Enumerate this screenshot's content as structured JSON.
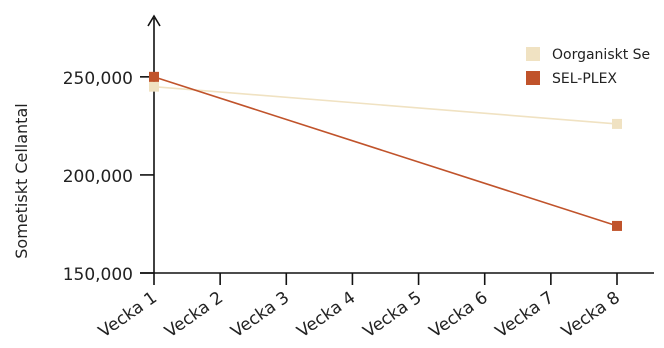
{
  "chart_data": {
    "type": "line",
    "title": "",
    "xlabel": "",
    "ylabel": "Sometiskt Cellantal",
    "categories": [
      "Vecka 1",
      "Vecka 2",
      "Vecka 3",
      "Vecka 4",
      "Vecka 5",
      "Vecka 6",
      "Vecka 7",
      "Vecka 8"
    ],
    "ylim": [
      150000,
      280000
    ],
    "yticks": [
      "150,000",
      "200,000",
      "250,000"
    ],
    "ytick_values": [
      150000,
      200000,
      250000
    ],
    "grid": false,
    "legend_position": "top-right",
    "series": [
      {
        "name": "Oorganiskt Se",
        "color": "#f0e2c2",
        "points": [
          {
            "category": "Vecka 1",
            "value": 245000
          },
          {
            "category": "Vecka 8",
            "value": 226000
          }
        ]
      },
      {
        "name": "SEL-PLEX",
        "color": "#c0532b",
        "points": [
          {
            "category": "Vecka 1",
            "value": 250000
          },
          {
            "category": "Vecka 8",
            "value": 174000
          }
        ]
      }
    ]
  }
}
